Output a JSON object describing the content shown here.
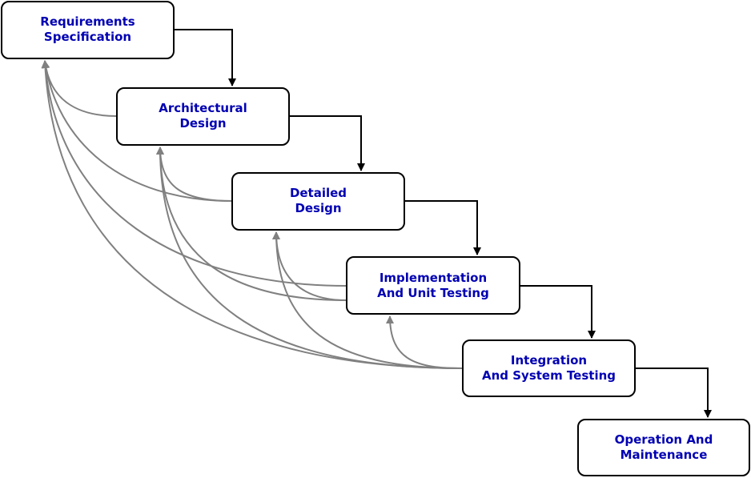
{
  "diagram": {
    "colors": {
      "box_border": "#000000",
      "label_text": "#0000b3",
      "flow_arrow": "#000000",
      "feedback_arrow": "#808080"
    },
    "stages": [
      {
        "id": "requirements",
        "lines": [
          "Requirements",
          "Specification"
        ]
      },
      {
        "id": "architectural",
        "lines": [
          "Architectural",
          "Design"
        ]
      },
      {
        "id": "detailed",
        "lines": [
          "Detailed",
          "Design"
        ]
      },
      {
        "id": "implementation",
        "lines": [
          "Implementation",
          "And Unit Testing"
        ]
      },
      {
        "id": "integration",
        "lines": [
          "Integration",
          "And System Testing"
        ]
      },
      {
        "id": "operation",
        "lines": [
          "Operation And",
          "Maintenance"
        ]
      }
    ],
    "flow_links": [
      {
        "from": "requirements",
        "to": "architectural"
      },
      {
        "from": "architectural",
        "to": "detailed"
      },
      {
        "from": "detailed",
        "to": "implementation"
      },
      {
        "from": "implementation",
        "to": "integration"
      },
      {
        "from": "integration",
        "to": "operation"
      }
    ],
    "feedback_links": [
      {
        "from": "architectural",
        "to": "requirements"
      },
      {
        "from": "detailed",
        "to": "requirements"
      },
      {
        "from": "implementation",
        "to": "requirements"
      },
      {
        "from": "integration",
        "to": "requirements"
      },
      {
        "from": "detailed",
        "to": "architectural"
      },
      {
        "from": "implementation",
        "to": "architectural"
      },
      {
        "from": "integration",
        "to": "architectural"
      },
      {
        "from": "implementation",
        "to": "detailed"
      },
      {
        "from": "integration",
        "to": "detailed"
      },
      {
        "from": "integration",
        "to": "implementation"
      }
    ]
  }
}
